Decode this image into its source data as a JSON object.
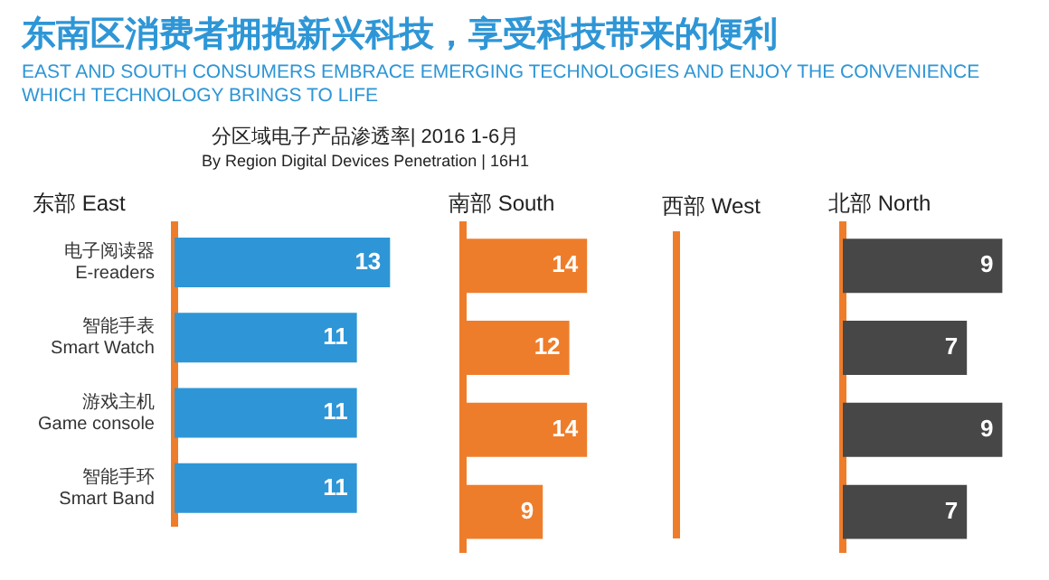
{
  "chart_data": [
    {
      "type": "other",
      "title": "东南区消费者拥抱新兴科技，享受科技带来的便利",
      "subtitle": "EAST AND SOUTH CONSUMERS EMBRACE EMERGING TECHNOLOGIES AND ENJOY THE CONVENIENCE WHICH TECHNOLOGY BRINGS TO LIFE",
      "annotations": [
        "分区域电子产品渗透率| 2016 1-6月",
        "By Region Digital Devices Penetration | 16H1"
      ]
    },
    {
      "type": "bar",
      "orientation": "horizontal",
      "title": "东部 East",
      "categories": [
        "电子阅读器 E-readers",
        "智能手表 Smart Watch",
        "游戏主机 Game console",
        "智能手环 Smart Band"
      ],
      "values": [
        13,
        11,
        11,
        11
      ],
      "color": "#2e96d6",
      "data_labels": true,
      "tick_labels": "y"
    },
    {
      "type": "bar",
      "orientation": "horizontal",
      "title": "南部 South",
      "categories": [
        null,
        null,
        null,
        null
      ],
      "values": [
        14,
        12,
        14,
        9
      ],
      "color": "#ee7d2b",
      "data_labels": true,
      "tick_labels": false
    },
    {
      "type": "other",
      "title": "西部 West"
    },
    {
      "type": "bar",
      "orientation": "horizontal",
      "title": "北部 North",
      "categories": [
        null,
        null,
        null,
        null
      ],
      "values": [
        9,
        7,
        9,
        7
      ],
      "color": "#474747",
      "data_labels": true,
      "tick_labels": false
    }
  ]
}
